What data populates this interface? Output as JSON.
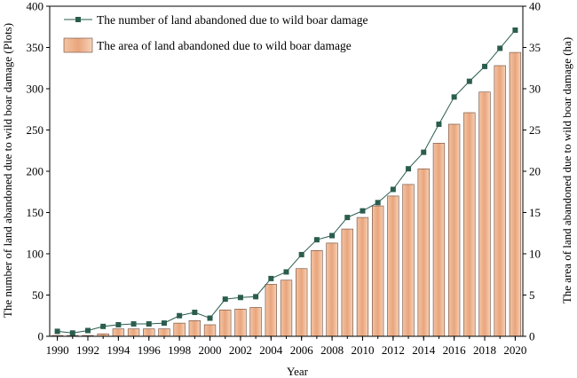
{
  "chart_data": {
    "type": "bar",
    "xlabel": "Year",
    "ylabel_left": "The number of land abandoned due to wild boar damage (Plots)",
    "ylabel_right": "The area of land abandoned due to wild boar damage (ha)",
    "ylim_left": [
      0,
      400
    ],
    "ylim_right": [
      0,
      40
    ],
    "yticks_left": [
      "0",
      "50",
      "100",
      "150",
      "200",
      "250",
      "300",
      "350",
      "400"
    ],
    "yticks_right": [
      "0",
      "5",
      "10",
      "15",
      "20",
      "25",
      "30",
      "35",
      "40"
    ],
    "xticks": [
      "1990",
      "1992",
      "1994",
      "1996",
      "1998",
      "2000",
      "2002",
      "2004",
      "2006",
      "2008",
      "2010",
      "2012",
      "2014",
      "2016",
      "2018",
      "2020"
    ],
    "x": [
      1990,
      1991,
      1992,
      1993,
      1994,
      1995,
      1996,
      1997,
      1998,
      1999,
      2000,
      2001,
      2002,
      2003,
      2004,
      2005,
      2006,
      2007,
      2008,
      2009,
      2010,
      2011,
      2012,
      2013,
      2014,
      2015,
      2016,
      2017,
      2018,
      2019,
      2020
    ],
    "grid": false,
    "legend_position": "top-left",
    "series": [
      {
        "name": "The number of land abandoned due to wild boar damage",
        "type": "line",
        "axis": "left",
        "color": "#2a5d4e",
        "values": [
          6,
          4,
          7,
          12,
          14,
          15,
          15,
          16,
          25,
          29,
          22,
          45,
          47,
          48,
          70,
          78,
          99,
          117,
          122,
          144,
          152,
          162,
          178,
          203,
          223,
          257,
          290,
          309,
          327,
          349,
          371
        ]
      },
      {
        "name": "The area of land abandoned due to wild boar damage",
        "type": "bar",
        "axis": "right",
        "color": "#e8a57c",
        "values": [
          0.1,
          0.1,
          0.1,
          0.3,
          0.9,
          0.9,
          0.9,
          0.9,
          1.6,
          1.9,
          1.4,
          3.2,
          3.3,
          3.5,
          6.3,
          6.8,
          8.2,
          10.4,
          11.3,
          13.0,
          14.4,
          15.8,
          17.0,
          18.4,
          20.3,
          23.4,
          25.7,
          27.1,
          29.6,
          32.8,
          34.4
        ]
      }
    ]
  }
}
